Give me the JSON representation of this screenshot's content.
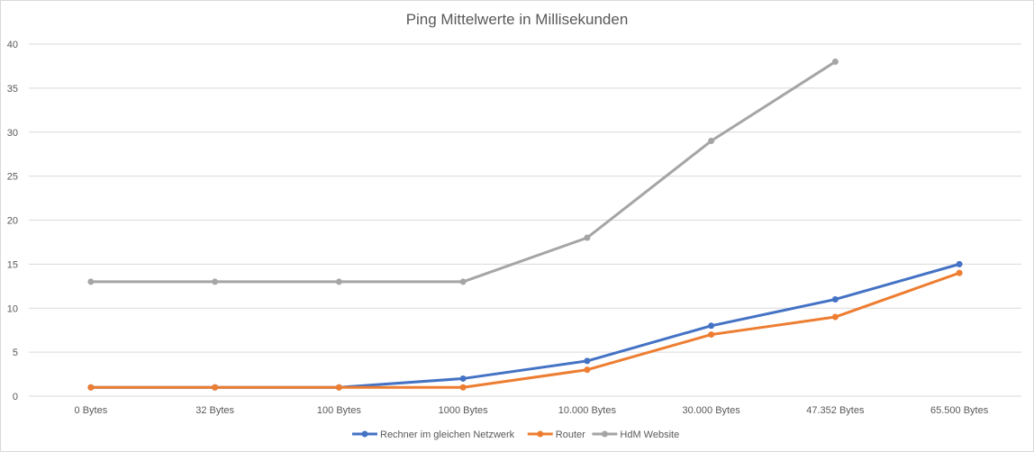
{
  "chart_data": {
    "type": "line",
    "title": "Ping Mittelwerte in Millisekunden",
    "xlabel": "",
    "ylabel": "",
    "categories": [
      "0 Bytes",
      "32 Bytes",
      "100 Bytes",
      "1000 Bytes",
      "10.000 Bytes",
      "30.000 Bytes",
      "47.352 Bytes",
      "65.500 Bytes"
    ],
    "ylim": [
      0,
      40
    ],
    "yticks": [
      0,
      5,
      10,
      15,
      20,
      25,
      30,
      35,
      40
    ],
    "grid": true,
    "legend_position": "bottom",
    "series": [
      {
        "name": "Rechner im gleichen Netzwerk",
        "color": "#4472c4",
        "values": [
          1,
          1,
          1,
          2,
          4,
          8,
          11,
          15
        ]
      },
      {
        "name": "Router",
        "color": "#ed7d31",
        "values": [
          1,
          1,
          1,
          1,
          3,
          7,
          9,
          14
        ]
      },
      {
        "name": "HdM Website",
        "color": "#a5a5a5",
        "values": [
          13,
          13,
          13,
          13,
          18,
          29,
          38,
          null
        ]
      }
    ]
  }
}
